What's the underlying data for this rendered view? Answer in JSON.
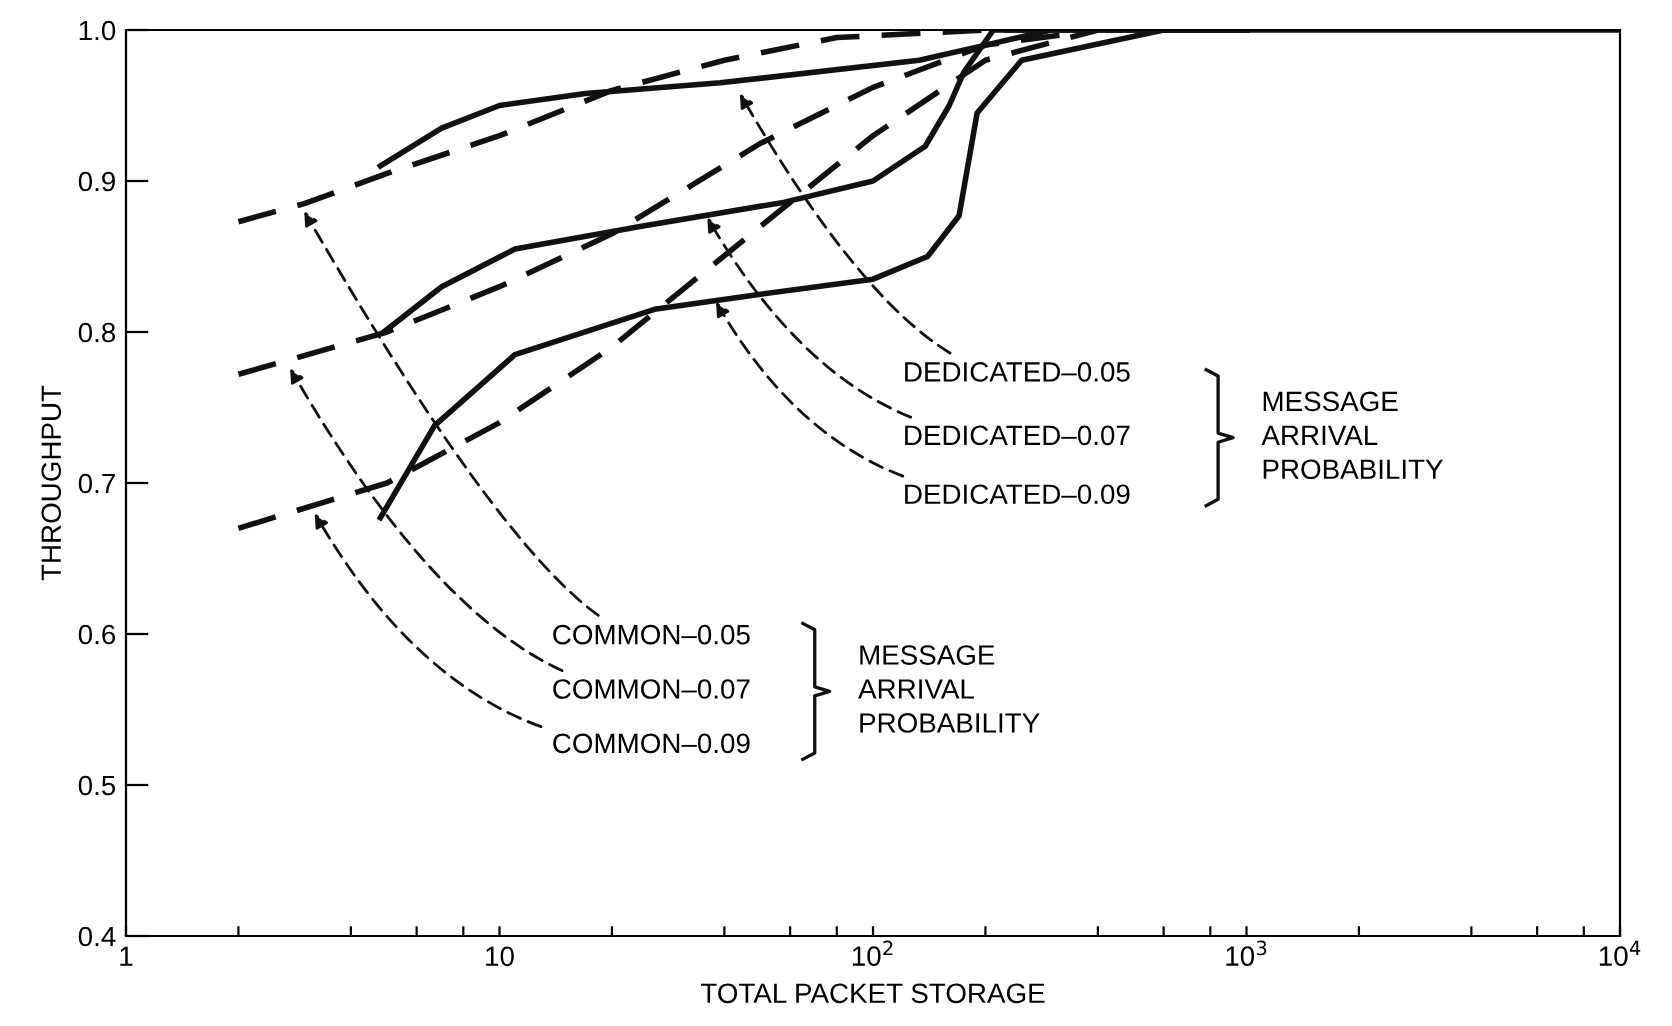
{
  "chart_data": {
    "type": "line",
    "xlabel": "TOTAL PACKET STORAGE",
    "ylabel": "THROUGHPUT",
    "log": "x",
    "xlim": [
      1,
      10000
    ],
    "ylim": [
      0.4,
      1.0
    ],
    "xticks": [
      {
        "value": 1,
        "label": "1"
      },
      {
        "value": 2,
        "label": null
      },
      {
        "value": 4,
        "label": null
      },
      {
        "value": 6,
        "label": null
      },
      {
        "value": 8,
        "label": null
      },
      {
        "value": 10,
        "label": "10"
      },
      {
        "value": 20,
        "label": null
      },
      {
        "value": 40,
        "label": null
      },
      {
        "value": 60,
        "label": null
      },
      {
        "value": 80,
        "label": null
      },
      {
        "value": 100,
        "label": "10$^{2}$"
      },
      {
        "value": 200,
        "label": null
      },
      {
        "value": 400,
        "label": null
      },
      {
        "value": 600,
        "label": null
      },
      {
        "value": 800,
        "label": null
      },
      {
        "value": 1000,
        "label": "10$^{3}$"
      },
      {
        "value": 2000,
        "label": null
      },
      {
        "value": 4000,
        "label": null
      },
      {
        "value": 6000,
        "label": null
      },
      {
        "value": 8000,
        "label": null
      },
      {
        "value": 10000,
        "label": "10$^{4}$"
      }
    ],
    "yticks": [
      0.4,
      0.5,
      0.6,
      0.7,
      0.8,
      0.9,
      {
        "value": 1.0,
        "label": "1.0"
      }
    ],
    "grid": false,
    "marker": "none",
    "series": [
      {
        "color": "#111111",
        "line_style": "dashed",
        "x": [
          2,
          3,
          5,
          10,
          20,
          40,
          80,
          200,
          300
        ],
        "values": [
          0.873,
          0.885,
          0.905,
          0.93,
          0.96,
          0.98,
          0.995,
          1.0,
          1.0
        ]
      },
      {
        "color": "#111111",
        "line_style": "dashed",
        "x": [
          2,
          5,
          10,
          20,
          50,
          100,
          200,
          400
        ],
        "values": [
          0.772,
          0.8,
          0.83,
          0.865,
          0.925,
          0.962,
          0.99,
          1.0
        ]
      },
      {
        "color": "#111111",
        "line_style": "dashed",
        "x": [
          2,
          5,
          10,
          20,
          50,
          100,
          200,
          400
        ],
        "values": [
          0.67,
          0.7,
          0.74,
          0.79,
          0.87,
          0.93,
          0.98,
          1.0
        ]
      },
      {
        "color": "#111111",
        "line_style": "solid",
        "x": [
          4.8,
          7,
          10,
          17,
          39,
          133,
          200,
          300,
          1000
        ],
        "values": [
          0.91,
          0.935,
          0.95,
          0.958,
          0.965,
          0.98,
          0.99,
          1.0,
          1.0
        ]
      },
      {
        "color": "#111111",
        "line_style": "solid",
        "x": [
          4.9,
          7,
          11,
          24,
          58,
          100,
          138,
          160,
          175,
          210,
          1000
        ],
        "values": [
          0.8,
          0.83,
          0.855,
          0.87,
          0.886,
          0.9,
          0.923,
          0.95,
          0.972,
          1.0,
          1.0
        ]
      },
      {
        "color": "#111111",
        "line_style": "solid",
        "x": [
          4.8,
          6.7,
          11,
          26,
          50,
          100,
          140,
          170,
          190,
          250,
          600,
          10000
        ],
        "values": [
          0.677,
          0.738,
          0.785,
          0.815,
          0.825,
          0.835,
          0.85,
          0.877,
          0.945,
          0.98,
          1.0,
          1.0
        ]
      }
    ],
    "annotations": [
      {
        "text": "COMMON–0.05",
        "x": 3.0,
        "y": 0.88
      },
      {
        "text": "COMMON–0.07",
        "x": 2.75,
        "y": 0.776
      },
      {
        "text": "COMMON–0.09",
        "x": 3.2,
        "y": 0.68
      },
      "MESSAGE\nARRIVAL\nPROBABILITY",
      {
        "text": "DEDICATED–0.05",
        "x": 44,
        "y": 0.958
      },
      {
        "text": "DEDICATED–0.07",
        "x": 36,
        "y": 0.876
      },
      {
        "text": "DEDICATED–0.09",
        "x": 38,
        "y": 0.82
      },
      "MESSAGE\nARRIVAL\nPROBABILITY"
    ]
  }
}
